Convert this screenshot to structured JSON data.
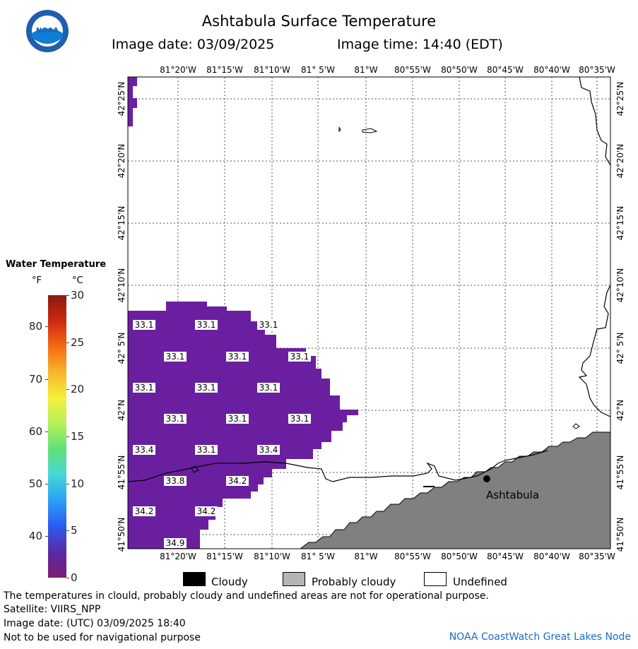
{
  "header": {
    "title": "Ashtabula Surface Temperature",
    "image_date_label": "Image date: 03/09/2025",
    "image_time_label": "Image time: 14:40 (EDT)",
    "logo_text": "NOAA"
  },
  "legend": {
    "title": "Water Temperature",
    "unit_f": "°F",
    "unit_c": "°C",
    "ticks_f": [
      {
        "label": "80",
        "value": 80
      },
      {
        "label": "70",
        "value": 70
      },
      {
        "label": "60",
        "value": 60
      },
      {
        "label": "50",
        "value": 50
      },
      {
        "label": "40",
        "value": 40
      }
    ],
    "ticks_c": [
      {
        "label": "30",
        "value": 30
      },
      {
        "label": "25",
        "value": 25
      },
      {
        "label": "20",
        "value": 20
      },
      {
        "label": "15",
        "value": 15
      },
      {
        "label": "10",
        "value": 10
      },
      {
        "label": "5",
        "value": 5
      },
      {
        "label": "0",
        "value": 0
      }
    ],
    "colors": [
      "#7a1f6f",
      "#5a2aa5",
      "#2b5cf0",
      "#2aa0f5",
      "#48d6d6",
      "#5fe07a",
      "#b7f05a",
      "#f5f03a",
      "#f7b52a",
      "#f56a14",
      "#cc2a10",
      "#8a1a0e"
    ]
  },
  "map": {
    "lon_labels": [
      "81°20'W",
      "81°15'W",
      "81°10'W",
      "81° 5'W",
      "81°W",
      "80°55'W",
      "80°50'W",
      "80°45'W",
      "80°40'W",
      "80°35'W"
    ],
    "lat_labels": [
      "42°25'N",
      "42°20'N",
      "42°15'N",
      "42°10'N",
      "42° 5'N",
      "42°N",
      "41°55'N",
      "41°50'N"
    ],
    "city_label": "Ashtabula",
    "temp_labels": [
      {
        "t": "33.1",
        "c": "c1"
      },
      {
        "t": "33.1",
        "c": "c2"
      },
      {
        "t": "33.1",
        "c": "c3"
      },
      {
        "t": "33.1",
        "c": "c4"
      },
      {
        "t": "33.1",
        "c": "c5"
      },
      {
        "t": "33.1",
        "c": "c6"
      },
      {
        "t": "33.1",
        "c": "c7"
      },
      {
        "t": "33.1",
        "c": "c8"
      },
      {
        "t": "33.1",
        "c": "c9"
      },
      {
        "t": "33.1",
        "c": "c10"
      },
      {
        "t": "33.1",
        "c": "c11"
      },
      {
        "t": "33.1",
        "c": "c12"
      },
      {
        "t": "33.4",
        "c": "c13"
      },
      {
        "t": "33.1",
        "c": "c14"
      },
      {
        "t": "33.4",
        "c": "c15"
      },
      {
        "t": "33.8",
        "c": "c16"
      },
      {
        "t": "34.2",
        "c": "c17"
      },
      {
        "t": "34.2",
        "c": "c18"
      },
      {
        "t": "34.2",
        "c": "c19"
      },
      {
        "t": "34.9",
        "c": "c20"
      }
    ],
    "water_color": "#6a1fa0",
    "land_color": "#808080"
  },
  "key": {
    "cloudy": "Cloudy",
    "probably_cloudy": "Probably cloudy",
    "undefined": "Undefined",
    "cloudy_color": "#000000",
    "probably_cloudy_color": "#b4b4b4",
    "undefined_color": "#ffffff"
  },
  "footer": {
    "line1": "The temperatures in clould, probably cloudy and undefined areas are not for operational purpose.",
    "line2": "Satellite: VIIRS_NPP",
    "line3": "Image date: (UTC) 03/09/2025  18:40",
    "line4": "Not to be used for navigational purpose",
    "credit": "NOAA CoastWatch Great Lakes Node"
  }
}
